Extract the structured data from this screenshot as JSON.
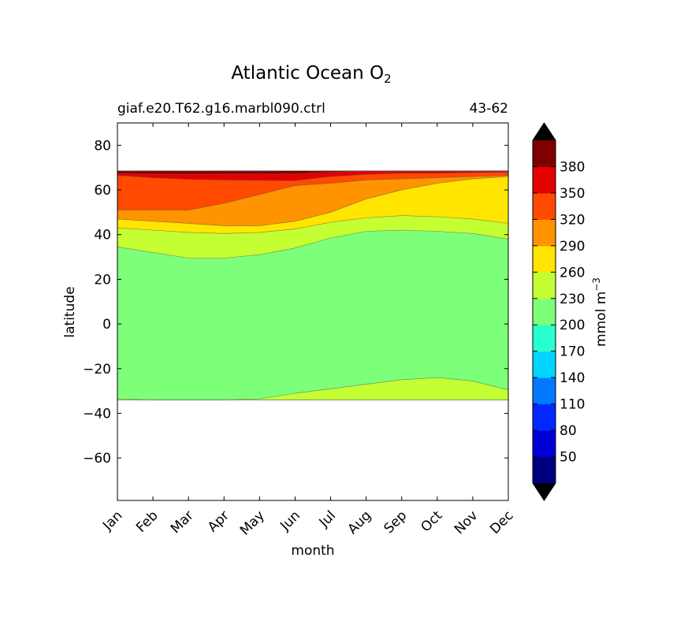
{
  "chart_data": {
    "type": "contourf",
    "title": "Atlantic Ocean O",
    "title_subscript": "2",
    "subtitle_left": "giaf.e20.T62.g16.marbl090.ctrl",
    "subtitle_right": "43-62",
    "xlabel": "month",
    "ylabel": "latitude",
    "x_ticks": [
      "Jan",
      "Feb",
      "Mar",
      "Apr",
      "May",
      "Jun",
      "Jul",
      "Aug",
      "Sep",
      "Oct",
      "Nov",
      "Dec"
    ],
    "y_ticks": [
      80,
      60,
      40,
      20,
      0,
      -20,
      -40,
      -60
    ],
    "y_tick_labels": [
      "80",
      "60",
      "40",
      "20",
      "0",
      "−20",
      "−40",
      "−60"
    ],
    "ylim": [
      -79,
      90
    ],
    "data_lat_range": [
      -34,
      68.5
    ],
    "colorbar": {
      "label": "mmol m",
      "label_superscript": "−3",
      "extend": "both",
      "levels": [
        20,
        50,
        80,
        110,
        140,
        170,
        200,
        230,
        260,
        290,
        320,
        350,
        380,
        410
      ],
      "tick_labels": [
        "50",
        "80",
        "110",
        "140",
        "170",
        "200",
        "230",
        "260",
        "290",
        "320",
        "350",
        "380"
      ],
      "colors": [
        "#00007f",
        "#0000d4",
        "#0028ff",
        "#0078ff",
        "#00d4ff",
        "#29ffce",
        "#7dff7a",
        "#c4ff33",
        "#ffe500",
        "#ff9400",
        "#ff4a00",
        "#e50000",
        "#7f0000"
      ],
      "under_color": "#000000",
      "over_color": "#000000"
    },
    "contour_boundaries": {
      "month_index": [
        0,
        1,
        2,
        3,
        4,
        5,
        6,
        7,
        8,
        9,
        10,
        11
      ],
      "south_edge_lat": -34,
      "north_edge_lat": 68.5,
      "b_200_230_south": [
        -33.5,
        -34,
        -34,
        -34,
        -33.5,
        -31,
        -29,
        -27,
        -25,
        -24,
        -25.5,
        -29.5
      ],
      "b_200_230_north": [
        34.5,
        32,
        29.5,
        29.5,
        31,
        34,
        38.5,
        41.5,
        42,
        41.5,
        40.5,
        38
      ],
      "b_230_260": [
        43,
        42,
        41,
        40.5,
        41,
        42.5,
        45.5,
        47.5,
        48.5,
        48,
        47,
        45
      ],
      "b_260_290": [
        47,
        46,
        45,
        44,
        44,
        46,
        50,
        56,
        60,
        63,
        65,
        66
      ],
      "b_290_320": [
        51,
        51,
        51,
        54,
        58,
        62,
        63,
        64.5,
        65,
        65.5,
        66,
        66.5
      ],
      "b_320_350": [
        66.5,
        65.5,
        64.8,
        64.5,
        64.3,
        64.2,
        66,
        67,
        67.5,
        67.5,
        67.8,
        68
      ],
      "b_350_380": [
        67.5,
        67.3,
        67.2,
        67.3,
        67.4,
        67.3,
        68,
        68.5,
        68.5,
        68.5,
        68.5,
        68.5
      ],
      "max_patch": {
        "month_index": [
          4.5,
          5.4
        ],
        "lat": [
          67.4,
          68.5
        ]
      }
    }
  }
}
